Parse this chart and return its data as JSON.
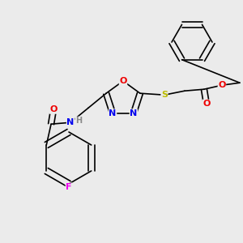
{
  "bg_color": "#ebebeb",
  "bond_color": "#000000",
  "atom_colors": {
    "N": "#0000ee",
    "O": "#ee0000",
    "S": "#bbbb00",
    "F": "#ee00ee",
    "H": "#888888",
    "C": "#000000"
  },
  "font_size": 8,
  "bond_width": 1.2,
  "fig_w": 3.0,
  "fig_h": 3.0,
  "dpi": 100
}
